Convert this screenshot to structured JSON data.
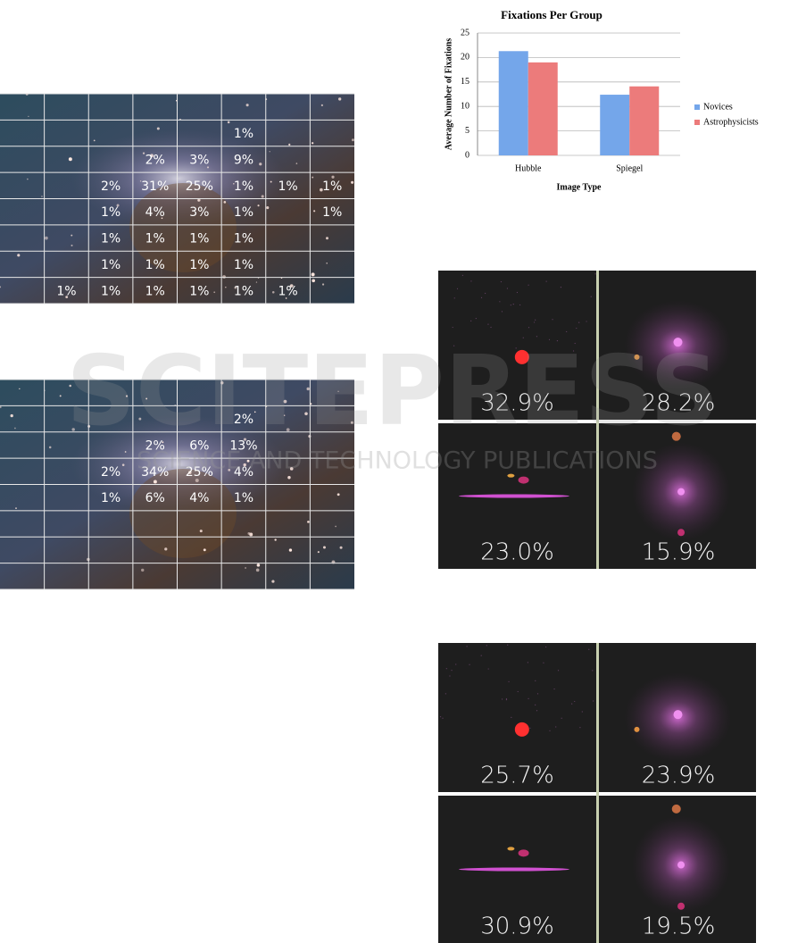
{
  "watermark": {
    "title": "SCITEPRESS",
    "subtitle": "SCIENCE AND TECHNOLOGY PUBLICATIONS"
  },
  "grids": [
    {
      "rows": [
        [
          null,
          null,
          null,
          null,
          null,
          null,
          null,
          null
        ],
        [
          null,
          null,
          null,
          null,
          null,
          "1%",
          null,
          null
        ],
        [
          null,
          null,
          null,
          "2%",
          "3%",
          "9%",
          null,
          null
        ],
        [
          null,
          null,
          "2%",
          "31%",
          "25%",
          "1%",
          "1%",
          "1%"
        ],
        [
          null,
          null,
          "1%",
          "4%",
          "3%",
          "1%",
          null,
          "1%"
        ],
        [
          null,
          null,
          "1%",
          "1%",
          "1%",
          "1%",
          null,
          null
        ],
        [
          null,
          null,
          "1%",
          "1%",
          "1%",
          "1%",
          null,
          null
        ],
        [
          null,
          "1%",
          "1%",
          "1%",
          "1%",
          "1%",
          "1%",
          null
        ]
      ]
    },
    {
      "rows": [
        [
          null,
          null,
          null,
          null,
          null,
          null,
          null,
          null
        ],
        [
          null,
          null,
          null,
          null,
          null,
          "2%",
          null,
          null
        ],
        [
          null,
          null,
          null,
          "2%",
          "6%",
          "13%",
          null,
          null
        ],
        [
          null,
          null,
          "2%",
          "34%",
          "25%",
          "4%",
          null,
          null
        ],
        [
          null,
          null,
          "1%",
          "6%",
          "4%",
          "1%",
          null,
          null
        ],
        [
          null,
          null,
          null,
          null,
          null,
          null,
          null,
          null
        ],
        [
          null,
          null,
          null,
          null,
          null,
          null,
          null,
          null
        ],
        [
          null,
          null,
          null,
          null,
          null,
          null,
          null,
          null
        ]
      ]
    }
  ],
  "chart_data": {
    "type": "bar",
    "title": "Fixations Per Group",
    "x_label": "Image Type",
    "y_label": "Average Number of Fixations",
    "categories": [
      "Hubble",
      "Spiegel"
    ],
    "series": [
      {
        "name": "Novices",
        "color": "#74a6ea",
        "values": [
          21.3,
          12.4
        ]
      },
      {
        "name": "Astrophysicists",
        "color": "#ec7b7b",
        "values": [
          19,
          14.1
        ]
      }
    ],
    "ylim": [
      0,
      25
    ],
    "yticks": [
      0,
      5,
      10,
      15,
      20,
      25
    ],
    "grid": true,
    "legend": "right"
  },
  "heatmaps": [
    {
      "labels": [
        "32.9%",
        "28.2%",
        "23.0%",
        "15.9%"
      ]
    },
    {
      "labels": [
        "25.7%",
        "23.9%",
        "30.9%",
        "19.5%"
      ]
    }
  ]
}
